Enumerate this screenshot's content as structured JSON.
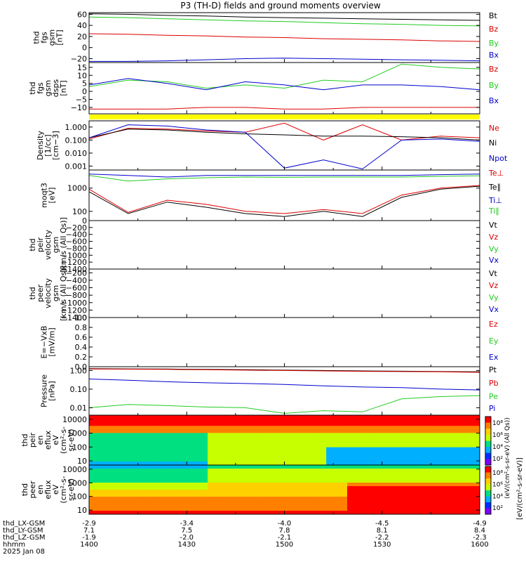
{
  "title": "P3 (TH-D) fields and ground moments overview",
  "footer": {
    "row_labels": [
      "thd_LX-GSM",
      "thd_LY-GSM",
      "thd_LZ-GSM",
      "hhmm",
      "2025 Jan 08"
    ],
    "columns": [
      [
        "-2.9",
        "7.1",
        "-1.9",
        "1400"
      ],
      [
        "-3.4",
        "7.5",
        "-2.0",
        "1430"
      ],
      [
        "-4.0",
        "7.8",
        "-2.1",
        "1500"
      ],
      [
        "-4.5",
        "8.1",
        "-2.2",
        "1530"
      ],
      [
        "-4.9",
        "8.4",
        "-2.3",
        "1600"
      ]
    ]
  },
  "colors": {
    "black": "#000000",
    "red": "#dd0000",
    "green": "#22cc22",
    "blue": "#0000cc",
    "yellow": "#ffff00"
  },
  "chart_data": [
    {
      "type": "line",
      "ylabel": [
        "thd",
        "fgs",
        "gsm",
        "[nT]"
      ],
      "yticks": [
        "60",
        "40",
        "20",
        "0",
        "−20"
      ],
      "ylim": [
        -27,
        63
      ],
      "xlim": [
        "1400",
        "1600"
      ],
      "series": [
        {
          "name": "Bt",
          "color": "#000000",
          "values": [
            61,
            60,
            58,
            57,
            55,
            54,
            53,
            52,
            51,
            50,
            49
          ]
        },
        {
          "name": "Bz",
          "color": "#dd0000",
          "values": [
            25,
            24,
            22,
            21,
            19,
            18,
            16,
            15,
            14,
            12,
            11
          ]
        },
        {
          "name": "By",
          "color": "#22cc22",
          "values": [
            55,
            54,
            52,
            50,
            48,
            47,
            45,
            43,
            42,
            40,
            39
          ]
        },
        {
          "name": "Bx",
          "color": "#0000cc",
          "values": [
            -25,
            -25,
            -24,
            -22,
            -20,
            -19,
            -20,
            -21,
            -22,
            -23,
            -24
          ]
        }
      ]
    },
    {
      "type": "line",
      "ylabel": [
        "thd",
        "fgs",
        "gsm",
        "dsps",
        "[nT]"
      ],
      "yticks": [
        "15",
        "10",
        "5",
        "0",
        "−5",
        "−10"
      ],
      "ylim": [
        -14,
        18
      ],
      "xlim": [
        "1400",
        "1600"
      ],
      "series": [
        {
          "name": "Bz",
          "color": "#dd0000",
          "values": [
            -11,
            -11,
            -11,
            -10,
            -10,
            -11,
            -11,
            -10,
            -10,
            -10,
            -10
          ]
        },
        {
          "name": "By",
          "color": "#22cc22",
          "values": [
            3,
            7,
            6,
            2,
            4,
            2,
            7,
            6,
            17,
            15,
            14
          ]
        },
        {
          "name": "Bx",
          "color": "#0000cc",
          "values": [
            4,
            8,
            5,
            1,
            6,
            4,
            1,
            4,
            4,
            3,
            1
          ]
        }
      ]
    },
    {
      "type": "line",
      "ylabel": [
        "Density",
        "[1/cc]",
        "[cm−3]"
      ],
      "yticks": [
        "1.000",
        "0.100",
        "0.010",
        "0.001"
      ],
      "yscale": "log",
      "ylim": [
        0.0005,
        3
      ],
      "xlim": [
        "1400",
        "1600"
      ],
      "series": [
        {
          "name": "Ne",
          "color": "#dd0000",
          "values": [
            0.12,
            0.8,
            0.7,
            0.5,
            0.4,
            2.0,
            0.1,
            1.5,
            0.1,
            0.2,
            0.15
          ]
        },
        {
          "name": "Ni",
          "color": "#000000",
          "values": [
            0.15,
            0.7,
            0.6,
            0.4,
            0.3,
            0.25,
            0.2,
            0.2,
            0.18,
            0.15,
            0.1
          ]
        },
        {
          "name": "Npot",
          "color": "#0000cc",
          "values": [
            0.15,
            1.5,
            1.2,
            0.6,
            0.4,
            0.0007,
            0.003,
            0.0006,
            0.1,
            0.12,
            0.08
          ]
        }
      ]
    },
    {
      "type": "line",
      "ylabel": [
        "moqt3",
        "[eV]"
      ],
      "yticks": [
        "1000",
        "100"
      ],
      "yscale": "log",
      "ylim": [
        40,
        6000
      ],
      "xlim": [
        "1400",
        "1600"
      ],
      "series": [
        {
          "name": "Te⊥",
          "color": "#dd0000",
          "values": [
            900,
            90,
            300,
            200,
            100,
            80,
            120,
            80,
            500,
            1000,
            1300
          ]
        },
        {
          "name": "Te∥",
          "color": "#000000",
          "values": [
            700,
            80,
            250,
            150,
            80,
            60,
            100,
            60,
            400,
            900,
            1200
          ]
        },
        {
          "name": "Ti⊥",
          "color": "#0000cc",
          "values": [
            4000,
            3500,
            3000,
            3500,
            3500,
            3500,
            3500,
            3500,
            3500,
            3800,
            4000
          ]
        },
        {
          "name": "Ti∥",
          "color": "#22cc22",
          "values": [
            3500,
            2000,
            2500,
            2800,
            3000,
            2900,
            3000,
            3000,
            3000,
            3200,
            3400
          ]
        }
      ]
    },
    {
      "type": "line",
      "ylabel": [
        "thd",
        "peir",
        "velocity",
        "gsm",
        "[km/s (All Qs)]"
      ],
      "yticks": [
        "0",
        "−200",
        "−400",
        "−600",
        "−800",
        "−1000",
        "−1200",
        "−1400"
      ],
      "ylim": [
        -1400,
        0
      ],
      "xlim": [
        "1400",
        "1600"
      ],
      "series": [
        {
          "name": "Vt",
          "color": "#000000"
        },
        {
          "name": "Vz",
          "color": "#dd0000"
        },
        {
          "name": "Vy",
          "color": "#22cc22"
        },
        {
          "name": "Vx",
          "color": "#0000cc"
        }
      ]
    },
    {
      "type": "line",
      "ylabel": [
        "thd",
        "peer",
        "velocity",
        "gsm",
        "[km/s (All Qs)]"
      ],
      "yticks": [
        "−200",
        "−400",
        "−600",
        "−800",
        "−1000",
        "−1200",
        "−1400"
      ],
      "ylim": [
        -1400,
        -100
      ],
      "xlim": [
        "1400",
        "1600"
      ],
      "series": [
        {
          "name": "Vt",
          "color": "#000000"
        },
        {
          "name": "Vz",
          "color": "#dd0000"
        },
        {
          "name": "Vy",
          "color": "#22cc22"
        },
        {
          "name": "Vx",
          "color": "#0000cc"
        }
      ]
    },
    {
      "type": "line",
      "ylabel": [
        "E=−VxB",
        "[mV/m]"
      ],
      "yticks": [
        "1.0",
        "0.8",
        "0.6",
        "0.4",
        "0.2",
        "0.0"
      ],
      "ylim": [
        0,
        1
      ],
      "xlim": [
        "1400",
        "1600"
      ],
      "series": [
        {
          "name": "Ez",
          "color": "#dd0000"
        },
        {
          "name": "Ey",
          "color": "#22cc22"
        },
        {
          "name": "Ex",
          "color": "#0000cc"
        }
      ]
    },
    {
      "type": "line",
      "ylabel": [
        "Pressure",
        "[nPa]"
      ],
      "yticks": [
        "1.00",
        "0.10",
        "0.01"
      ],
      "yscale": "log",
      "ylim": [
        0.004,
        1.6
      ],
      "xlim": [
        "1400",
        "1600"
      ],
      "series": [
        {
          "name": "Pt",
          "color": "#000000",
          "values": [
            1.25,
            1.22,
            1.2,
            1.15,
            1.1,
            1.05,
            1.0,
            0.95,
            0.92,
            0.88,
            0.85
          ]
        },
        {
          "name": "Pb",
          "color": "#dd0000",
          "values": [
            1.2,
            1.18,
            1.15,
            1.1,
            1.05,
            1.0,
            0.95,
            0.9,
            0.88,
            0.85,
            0.8
          ]
        },
        {
          "name": "Pe",
          "color": "#22cc22",
          "values": [
            0.01,
            0.015,
            0.013,
            0.011,
            0.01,
            0.005,
            0.007,
            0.006,
            0.03,
            0.04,
            0.045
          ]
        },
        {
          "name": "Pi",
          "color": "#0000cc",
          "values": [
            0.35,
            0.3,
            0.25,
            0.22,
            0.2,
            0.18,
            0.15,
            0.13,
            0.12,
            0.1,
            0.09
          ]
        }
      ]
    },
    {
      "type": "heatmap",
      "ylabel": [
        "thd",
        "peir",
        "en",
        "eflux",
        "eV",
        "(cm²-s-",
        "sr-eV)"
      ],
      "yticks": [
        "10000",
        "1000",
        "100",
        "10"
      ],
      "yscale": "log",
      "ylim": [
        5,
        20000
      ],
      "xlim": [
        "1400",
        "1600"
      ]
    },
    {
      "type": "heatmap",
      "ylabel": [
        "thd",
        "peer",
        "en",
        "eflux",
        "eV",
        "(cm²-s-",
        "sr-eV)"
      ],
      "yticks": [
        "10000",
        "1000",
        "100",
        "10"
      ],
      "yscale": "log",
      "ylim": [
        5,
        20000
      ],
      "xlim": [
        "1400",
        "1600"
      ]
    }
  ],
  "colorbar": {
    "ticks_upper": [
      "10⁸",
      "10⁶",
      "10⁴",
      "10²"
    ],
    "ticks_lower": [
      "10⁸",
      "10⁶",
      "10⁴",
      "10²"
    ],
    "label": "[eV/(cm²-s-sr-eV)]",
    "side_label": "(eV/(cm²-s-sr-eV) (All Qs))"
  }
}
